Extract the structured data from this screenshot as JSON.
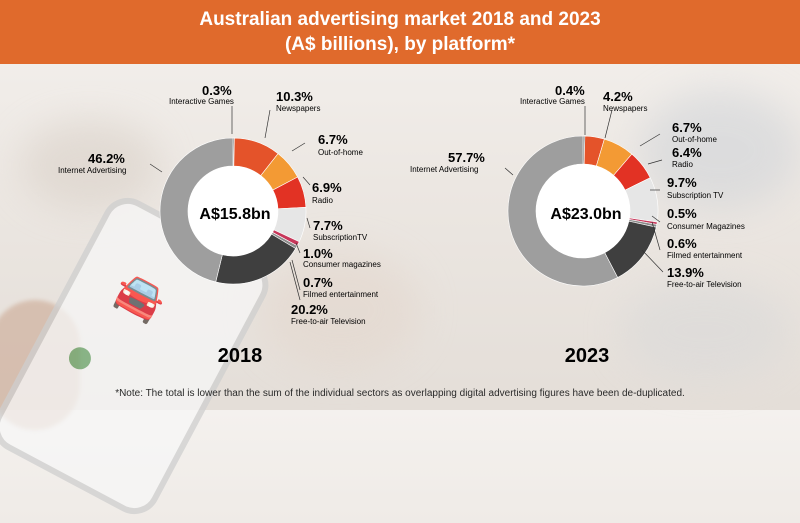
{
  "title": {
    "line1": "Australian advertising market 2018 and 2023",
    "line2": "(A$ billions), by platform*"
  },
  "footnote": "*Note: The total is lower than the sum of the individual sectors as overlapping digital advertising figures have been de-duplicated.",
  "colors": {
    "Newspapers": "#e4532a",
    "Out-of-home": "#f39a34",
    "Radio": "#e23224",
    "Subscription TV": "#e6e6e6",
    "Consumer Magazines": "#c7375a",
    "Filmed entertainment": "#8b8b8b",
    "Free-to-air Television": "#3f3f3f",
    "Internet Advertising": "#9e9e9e",
    "Interactive Games": "#7a7a7a"
  },
  "chart_data": [
    {
      "type": "pie",
      "title": "2018",
      "total_label": "A$15.8bn",
      "slices": [
        {
          "label": "Interactive Games",
          "value": 0.3,
          "display": "0.3%"
        },
        {
          "label": "Newspapers",
          "value": 10.3,
          "display": "10.3%"
        },
        {
          "label": "Out-of-home",
          "value": 6.7,
          "display": "6.7%"
        },
        {
          "label": "Radio",
          "value": 6.9,
          "display": "6.9%"
        },
        {
          "label": "SubscriptionTV",
          "colorKey": "Subscription TV",
          "value": 7.7,
          "display": "7.7%"
        },
        {
          "label": "Consumer magazines",
          "colorKey": "Consumer Magazines",
          "value": 1.0,
          "display": "1.0%"
        },
        {
          "label": "Filmed entertainment",
          "value": 0.7,
          "display": "0.7%"
        },
        {
          "label": "Free-to-air Television",
          "value": 20.2,
          "display": "20.2%"
        },
        {
          "label": "Internet Advertising",
          "value": 46.2,
          "display": "46.2%"
        }
      ]
    },
    {
      "type": "pie",
      "title": "2023",
      "total_label": "A$23.0bn",
      "slices": [
        {
          "label": "Interactive Games",
          "value": 0.4,
          "display": "0.4%"
        },
        {
          "label": "Newspapers",
          "value": 4.2,
          "display": "4.2%"
        },
        {
          "label": "Out-of-home",
          "value": 6.7,
          "display": "6.7%"
        },
        {
          "label": "Radio",
          "value": 6.4,
          "display": "6.4%"
        },
        {
          "label": "Subscription TV",
          "value": 9.7,
          "display": "9.7%"
        },
        {
          "label": "Consumer Magazines",
          "value": 0.5,
          "display": "0.5%"
        },
        {
          "label": "Filmed entertainment",
          "value": 0.6,
          "display": "0.6%"
        },
        {
          "label": "Free-to-air Television",
          "value": 13.9,
          "display": "13.9%"
        },
        {
          "label": "Internet Advertising",
          "value": 57.7,
          "display": "57.7%"
        }
      ]
    }
  ]
}
